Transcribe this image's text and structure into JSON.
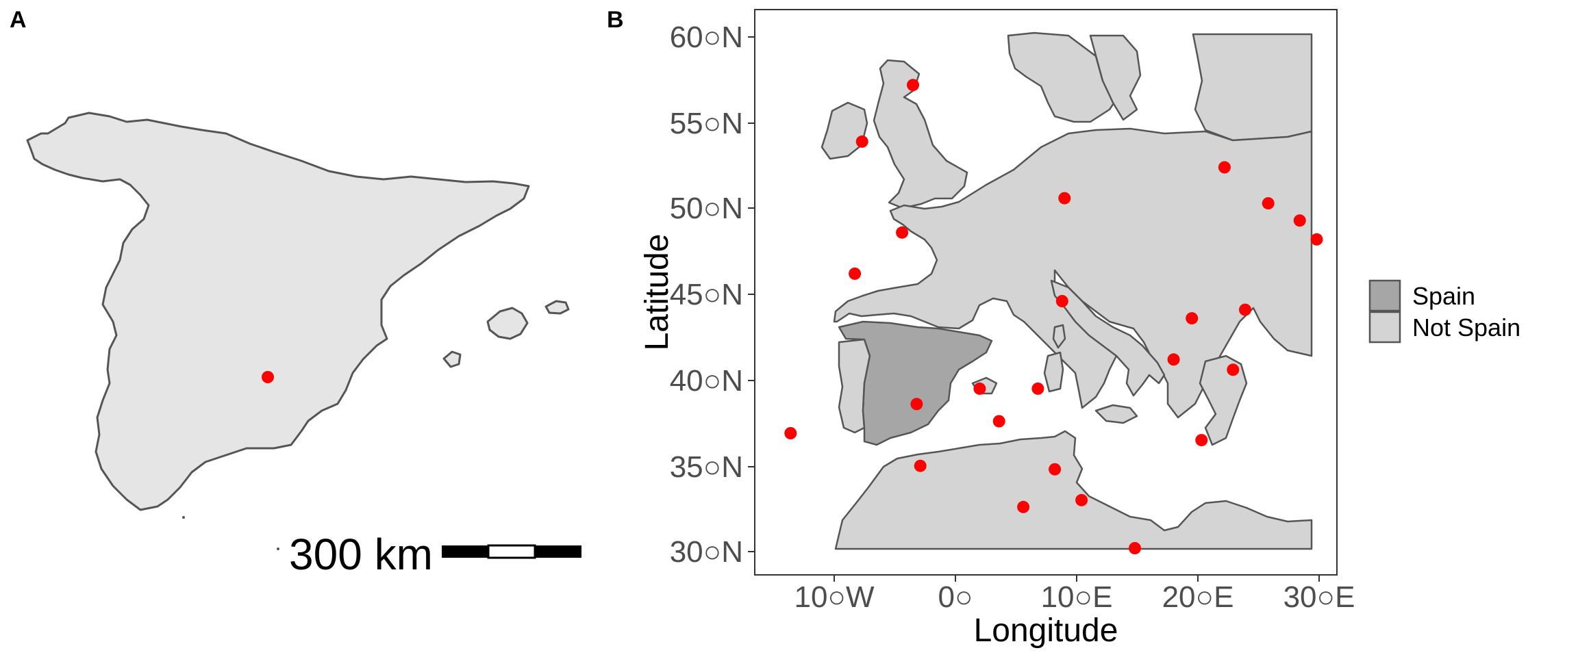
{
  "panels": {
    "a_label": "A",
    "b_label": "B"
  },
  "panel_a": {
    "scale_bar_label": "300 km",
    "site": {
      "lon": -3.7,
      "lat": 40.0
    }
  },
  "panel_b": {
    "x_title": "Longitude",
    "y_title": "Latitude",
    "x_ticks": [
      {
        "value": -10,
        "label": "10○W"
      },
      {
        "value": 0,
        "label": "0○"
      },
      {
        "value": 10,
        "label": "10○E"
      },
      {
        "value": 20,
        "label": "20○E"
      },
      {
        "value": 30,
        "label": "30○E"
      }
    ],
    "y_ticks": [
      {
        "value": 60,
        "label": "60○N"
      },
      {
        "value": 55,
        "label": "55○N"
      },
      {
        "value": 50,
        "label": "50○N"
      },
      {
        "value": 45,
        "label": "45○N"
      },
      {
        "value": 40,
        "label": "40○N"
      },
      {
        "value": 35,
        "label": "35○N"
      },
      {
        "value": 30,
        "label": "30○N"
      }
    ],
    "legend": [
      {
        "label": "Spain",
        "color": "#a6a6a6"
      },
      {
        "label": "Not Spain",
        "color": "#d4d4d4"
      }
    ]
  },
  "colors": {
    "land_a": "#e5e5e5",
    "spain": "#a6a6a6",
    "not_spain": "#d4d4d4",
    "border": "#555555",
    "point": "#ff0000"
  },
  "chart_data": {
    "type": "scatter",
    "xlim": [
      -16,
      32
    ],
    "ylim": [
      28.5,
      61.5
    ],
    "points": [
      {
        "x": -3.5,
        "y": 57.2
      },
      {
        "x": -7.7,
        "y": 53.9
      },
      {
        "x": 22.2,
        "y": 52.4
      },
      {
        "x": 9.0,
        "y": 50.6
      },
      {
        "x": 25.8,
        "y": 50.3
      },
      {
        "x": 28.4,
        "y": 49.3
      },
      {
        "x": 29.8,
        "y": 48.2
      },
      {
        "x": -4.4,
        "y": 48.6
      },
      {
        "x": -8.3,
        "y": 46.2
      },
      {
        "x": 8.8,
        "y": 44.6
      },
      {
        "x": 23.9,
        "y": 44.1
      },
      {
        "x": 19.5,
        "y": 43.6
      },
      {
        "x": 18.0,
        "y": 41.2
      },
      {
        "x": 22.9,
        "y": 40.6
      },
      {
        "x": 2.0,
        "y": 39.5
      },
      {
        "x": 6.8,
        "y": 39.5
      },
      {
        "x": -3.2,
        "y": 38.6
      },
      {
        "x": 3.6,
        "y": 37.6
      },
      {
        "x": -13.6,
        "y": 36.9
      },
      {
        "x": 20.3,
        "y": 36.5
      },
      {
        "x": -2.9,
        "y": 35.0
      },
      {
        "x": 8.2,
        "y": 34.8
      },
      {
        "x": 10.4,
        "y": 33.0
      },
      {
        "x": 5.6,
        "y": 32.6
      },
      {
        "x": 14.8,
        "y": 30.2
      }
    ]
  }
}
